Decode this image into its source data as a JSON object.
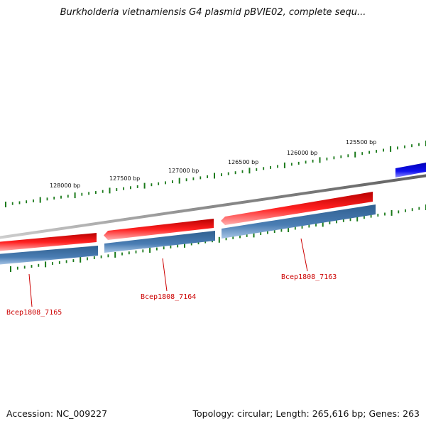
{
  "title": "Burkholderia vietnamiensis G4 plasmid pBVIE02, complete sequ...",
  "footer": {
    "accession": "Accession: NC_009227",
    "summary": "Topology: circular; Length: 265,616 bp; Genes: 263"
  },
  "colors": {
    "backbone": "#7f7f7f",
    "cds_forward": "#e01010",
    "cds_reverse_strip": "#3f6fa0",
    "partial_feature": "#0a0ae0",
    "tick": "#1a7a1a",
    "gene_label": "#cc0000"
  },
  "position_labels": [
    "128000 bp",
    "127500 bp",
    "127000 bp",
    "126500 bp",
    "126000 bp",
    "125500 bp"
  ],
  "genes": [
    {
      "label": "Bcep1808_7165"
    },
    {
      "label": "Bcep1808_7164"
    },
    {
      "label": "Bcep1808_7163"
    }
  ]
}
